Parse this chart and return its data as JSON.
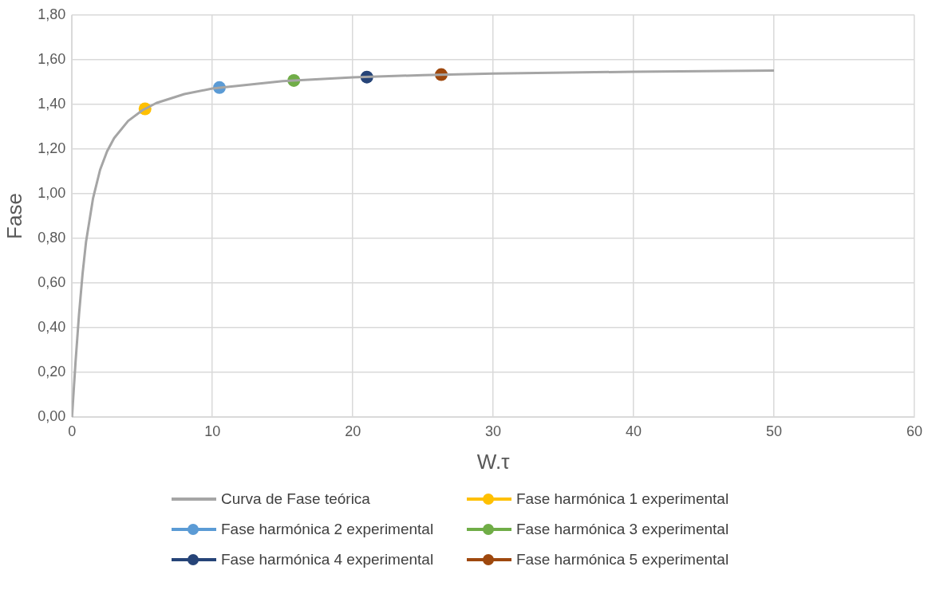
{
  "chart_data": {
    "type": "scatter",
    "xlabel": "W.τ",
    "ylabel": "Fase",
    "xlim": [
      0,
      60
    ],
    "ylim": [
      0,
      1.8
    ],
    "xticks": [
      0,
      10,
      20,
      30,
      40,
      50,
      60
    ],
    "yticks": [
      {
        "value": 0,
        "label": "0,00"
      },
      {
        "value": 0.2,
        "label": "0,20"
      },
      {
        "value": 0.4,
        "label": "0,40"
      },
      {
        "value": 0.6,
        "label": "0,60"
      },
      {
        "value": 0.8,
        "label": "0,80"
      },
      {
        "value": 1.0,
        "label": "1,00"
      },
      {
        "value": 1.2,
        "label": "1,20"
      },
      {
        "value": 1.4,
        "label": "1,40"
      },
      {
        "value": 1.6,
        "label": "1,60"
      },
      {
        "value": 1.8,
        "label": "1,80"
      }
    ],
    "grid": true,
    "legend": "bottom",
    "marker": "circle",
    "series": [
      {
        "name": "Curva de Fase teórica",
        "type": "line",
        "marker": "none",
        "color": "#a5a5a5",
        "x": [
          0,
          0.25,
          0.5,
          0.75,
          1,
          1.5,
          2,
          2.5,
          3,
          4,
          5,
          6,
          8,
          10,
          15,
          20,
          25,
          30,
          40,
          50
        ],
        "values": [
          0,
          0.245,
          0.46,
          0.64,
          0.785,
          0.98,
          1.107,
          1.19,
          1.249,
          1.326,
          1.373,
          1.406,
          1.446,
          1.471,
          1.504,
          1.521,
          1.531,
          1.538,
          1.546,
          1.551
        ]
      },
      {
        "name": "Fase harmónica 1 experimental",
        "color": "#ffc000",
        "x": [
          5.2
        ],
        "values": [
          1.38
        ]
      },
      {
        "name": "Fase harmónica 2 experimental",
        "color": "#5b9bd5",
        "x": [
          10.5
        ],
        "values": [
          1.475
        ]
      },
      {
        "name": "Fase harmónica 3 experimental",
        "color": "#70ad47",
        "x": [
          15.8
        ],
        "values": [
          1.507
        ]
      },
      {
        "name": "Fase harmónica 4 experimental",
        "color": "#264478",
        "x": [
          21
        ],
        "values": [
          1.522
        ]
      },
      {
        "name": "Fase harmónica 5 experimental",
        "color": "#9e480e",
        "x": [
          26.3
        ],
        "values": [
          1.533
        ]
      }
    ]
  }
}
